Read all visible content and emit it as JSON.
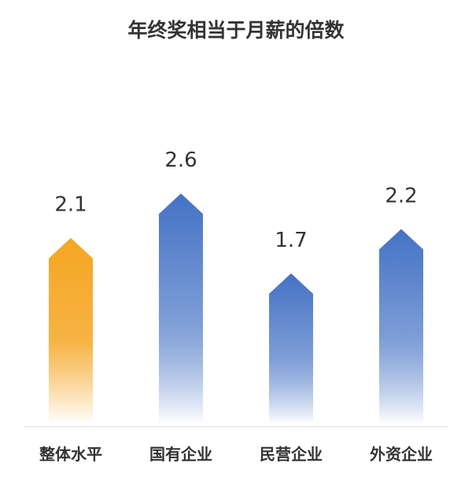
{
  "chart_data": {
    "type": "bar",
    "title": "年终奖相当于月薪的倍数",
    "xlabel": "",
    "ylabel": "",
    "categories": [
      "整体水平",
      "国有企业",
      "民营企业",
      "外资企业"
    ],
    "values": [
      2.1,
      2.6,
      1.7,
      2.2
    ],
    "ylim": [
      0,
      3
    ],
    "grid": false,
    "legend": "none",
    "bar_shape": "arrow",
    "colors": {
      "highlight_top": "#F5A623",
      "highlight_bottom": "#FFFFFF",
      "normal_top": "#4472C4",
      "normal_bottom": "#FFFFFF",
      "text": "#333333",
      "axis": "#D9D9D9"
    },
    "highlight_index": 0
  }
}
